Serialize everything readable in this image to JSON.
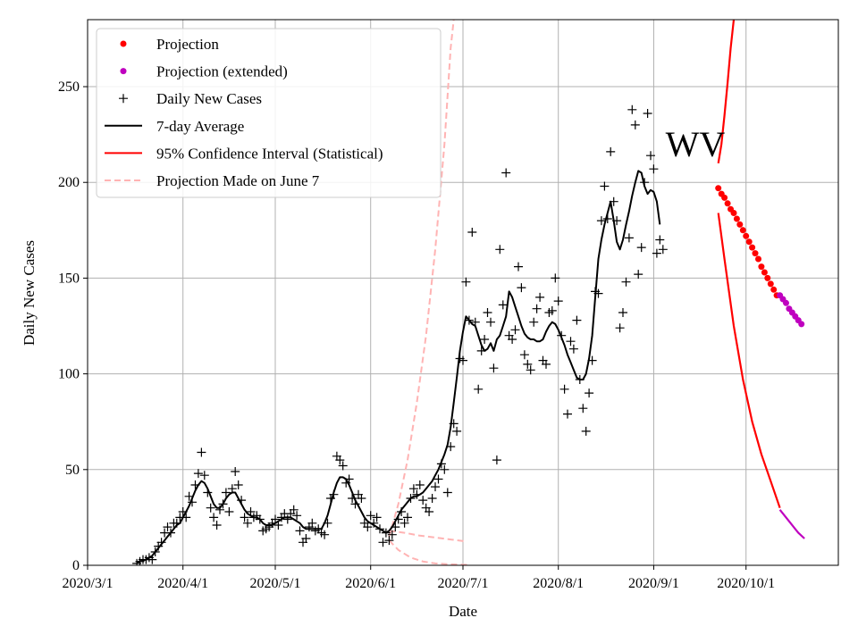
{
  "chart_data": {
    "type": "line",
    "title": "",
    "annotation": "WV",
    "xlabel": "Date",
    "ylabel": "Daily New Cases",
    "xlim": [
      "2020-03-01",
      "2020-10-31"
    ],
    "ylim": [
      0,
      285
    ],
    "grid": true,
    "legend_position": "top-left",
    "x_ticks": [
      {
        "date": "2020-03-01",
        "label": "2020/3/1"
      },
      {
        "date": "2020-04-01",
        "label": "2020/4/1"
      },
      {
        "date": "2020-05-01",
        "label": "2020/5/1"
      },
      {
        "date": "2020-06-01",
        "label": "2020/6/1"
      },
      {
        "date": "2020-07-01",
        "label": "2020/7/1"
      },
      {
        "date": "2020-08-01",
        "label": "2020/8/1"
      },
      {
        "date": "2020-09-01",
        "label": "2020/9/1"
      },
      {
        "date": "2020-10-01",
        "label": "2020/10/1"
      }
    ],
    "y_ticks": [
      0,
      50,
      100,
      150,
      200,
      250
    ],
    "legend": [
      {
        "label": "Projection",
        "marker": "dot",
        "color": "#ff0000"
      },
      {
        "label": "Projection (extended)",
        "marker": "dot",
        "color": "#bf00bf"
      },
      {
        "label": "Daily New Cases",
        "marker": "plus",
        "color": "#000000"
      },
      {
        "label": "7-day Average",
        "marker": "line",
        "color": "#000000"
      },
      {
        "label": "95% Confidence Interval (Statistical)",
        "marker": "line",
        "color": "#ff0000"
      },
      {
        "label": "Projection Made on June 7",
        "marker": "dashed",
        "color": "#ffb3b3"
      }
    ],
    "series": [
      {
        "name": "Daily New Cases",
        "start_date": "2020-03-17",
        "values": [
          1,
          2,
          3,
          3,
          4,
          3,
          7,
          10,
          12,
          17,
          20,
          17,
          22,
          22,
          25,
          28,
          25,
          36,
          33,
          42,
          48,
          59,
          47,
          38,
          30,
          25,
          21,
          29,
          32,
          38,
          28,
          40,
          49,
          42,
          34,
          25,
          22,
          28,
          25,
          26,
          24,
          18,
          19,
          20,
          22,
          24,
          21,
          25,
          27,
          24,
          27,
          29,
          26,
          18,
          12,
          14,
          20,
          22,
          18,
          19,
          17,
          16,
          22,
          35,
          37,
          57,
          55,
          52,
          43,
          45,
          35,
          32,
          37,
          35,
          22,
          20,
          26,
          22,
          25,
          19,
          12,
          17,
          13,
          16,
          20,
          24,
          28,
          22,
          25,
          35,
          40,
          37,
          42,
          34,
          30,
          28,
          35,
          41,
          45,
          53,
          50,
          38,
          62,
          74,
          70,
          108,
          107,
          148,
          128,
          174,
          127,
          92,
          112,
          118,
          132,
          127,
          103,
          55,
          165,
          136,
          205,
          120,
          118,
          123,
          156,
          145,
          110,
          105,
          102,
          127,
          134,
          140,
          107,
          105,
          132,
          133,
          150,
          138,
          120,
          92,
          79,
          117,
          113,
          128,
          97,
          82,
          70,
          90,
          107,
          143,
          142,
          180,
          198,
          181,
          216,
          190,
          180,
          124,
          132,
          148,
          171,
          238,
          230,
          152,
          166,
          200,
          236,
          214,
          207,
          163,
          170,
          165
        ]
      },
      {
        "name": "7-day Average",
        "start_date": "2020-03-17",
        "values": [
          1.5,
          2,
          2.5,
          3,
          4,
          5,
          7,
          9,
          11,
          13,
          15,
          17,
          19,
          21,
          22,
          25,
          28,
          31,
          35,
          39,
          42,
          44,
          43,
          40,
          36,
          32,
          30,
          30,
          32,
          35,
          37,
          38,
          38,
          35,
          32,
          29,
          27,
          26,
          25,
          25,
          24,
          22,
          21,
          21,
          21,
          22,
          23,
          24,
          25,
          25,
          25,
          24,
          23,
          22,
          20,
          19,
          19,
          19,
          19,
          19,
          19,
          22,
          26,
          32,
          38,
          43,
          46,
          46,
          45,
          42,
          38,
          34,
          31,
          28,
          25,
          23,
          22,
          21,
          20,
          19,
          18,
          17,
          18,
          20,
          23,
          26,
          29,
          31,
          33,
          35,
          36,
          36,
          37,
          38,
          40,
          42,
          44,
          47,
          50,
          54,
          58,
          63,
          72,
          85,
          98,
          112,
          122,
          130,
          128,
          126,
          125,
          120,
          115,
          112,
          113,
          116,
          112,
          118,
          120,
          125,
          130,
          143,
          140,
          135,
          130,
          125,
          121,
          119,
          118,
          118,
          117,
          117,
          118,
          122,
          125,
          127,
          126,
          123,
          119,
          115,
          110,
          106,
          102,
          98,
          97,
          97,
          100,
          108,
          120,
          140,
          160,
          170,
          178,
          184,
          190,
          180,
          169,
          165,
          170,
          178,
          185,
          193,
          200,
          206,
          205,
          198,
          194,
          196,
          195,
          190,
          178
        ]
      },
      {
        "name": "Projection",
        "start_date": "2020-09-22",
        "values": [
          197,
          194,
          192,
          189,
          186,
          184,
          181,
          178,
          175,
          172,
          169,
          166,
          163,
          160,
          156,
          153,
          150,
          147,
          144,
          141
        ]
      },
      {
        "name": "Projection (extended)",
        "start_date": "2020-10-12",
        "values": [
          141,
          139,
          137,
          134,
          132,
          130,
          128,
          126
        ]
      },
      {
        "name": "95% CI upper",
        "points": [
          [
            "2020-09-22",
            210
          ],
          [
            "2020-09-23",
            220
          ],
          [
            "2020-09-24",
            235
          ],
          [
            "2020-09-25",
            252
          ],
          [
            "2020-09-26",
            270
          ],
          [
            "2020-09-27",
            285
          ]
        ]
      },
      {
        "name": "95% CI lower",
        "points": [
          [
            "2020-09-22",
            184
          ],
          [
            "2020-09-24",
            160
          ],
          [
            "2020-09-27",
            125
          ],
          [
            "2020-09-30",
            97
          ],
          [
            "2020-10-03",
            75
          ],
          [
            "2020-10-06",
            58
          ],
          [
            "2020-10-09",
            44
          ],
          [
            "2020-10-12",
            30
          ]
        ]
      },
      {
        "name": "95% CI lower (extended)",
        "points": [
          [
            "2020-10-12",
            29
          ],
          [
            "2020-10-15",
            23
          ],
          [
            "2020-10-18",
            17
          ],
          [
            "2020-10-20",
            14
          ]
        ]
      },
      {
        "name": "Projection Made on June 7 (upper)",
        "points": [
          [
            "2020-06-07",
            15
          ],
          [
            "2020-06-10",
            32
          ],
          [
            "2020-06-13",
            55
          ],
          [
            "2020-06-16",
            85
          ],
          [
            "2020-06-19",
            120
          ],
          [
            "2020-06-22",
            165
          ],
          [
            "2020-06-25",
            220
          ],
          [
            "2020-06-27",
            270
          ],
          [
            "2020-06-28",
            285
          ]
        ]
      },
      {
        "name": "Projection Made on June 7 (mid)",
        "points": [
          [
            "2020-06-07",
            18
          ],
          [
            "2020-06-12",
            17
          ],
          [
            "2020-06-17",
            15.5
          ],
          [
            "2020-06-22",
            14.5
          ],
          [
            "2020-06-27",
            13.5
          ],
          [
            "2020-07-02",
            12.5
          ]
        ]
      },
      {
        "name": "Projection Made on June 7 (lower)",
        "points": [
          [
            "2020-06-07",
            13
          ],
          [
            "2020-06-10",
            8
          ],
          [
            "2020-06-14",
            4
          ],
          [
            "2020-06-18",
            2
          ],
          [
            "2020-06-22",
            1
          ],
          [
            "2020-06-27",
            0.5
          ],
          [
            "2020-07-03",
            0.2
          ]
        ]
      }
    ]
  }
}
